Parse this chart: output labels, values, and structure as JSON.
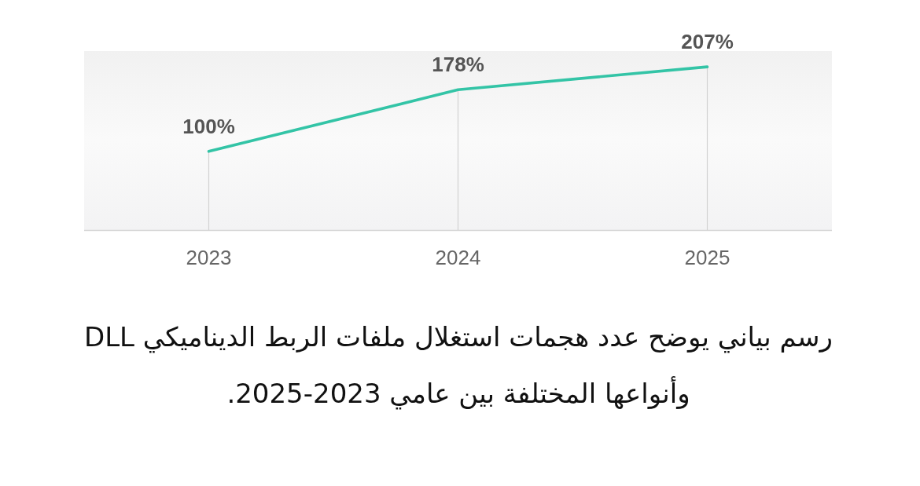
{
  "chart_data": {
    "type": "line",
    "categories": [
      "2023",
      "2024",
      "2025"
    ],
    "values": [
      100,
      178,
      207
    ],
    "value_labels": [
      "100%",
      "178%",
      "207%"
    ],
    "color": "#33c4a6",
    "ylim": [
      0,
      227
    ],
    "tick_labels": "x",
    "marker": "none",
    "line_style": "solid",
    "annotations": [
      "رسم بياني يوضح عدد هجمات استغلال ملفات الربط الديناميكي DLL",
      "وأنواعها المختلفة بين عامي 2023‐2025."
    ]
  }
}
